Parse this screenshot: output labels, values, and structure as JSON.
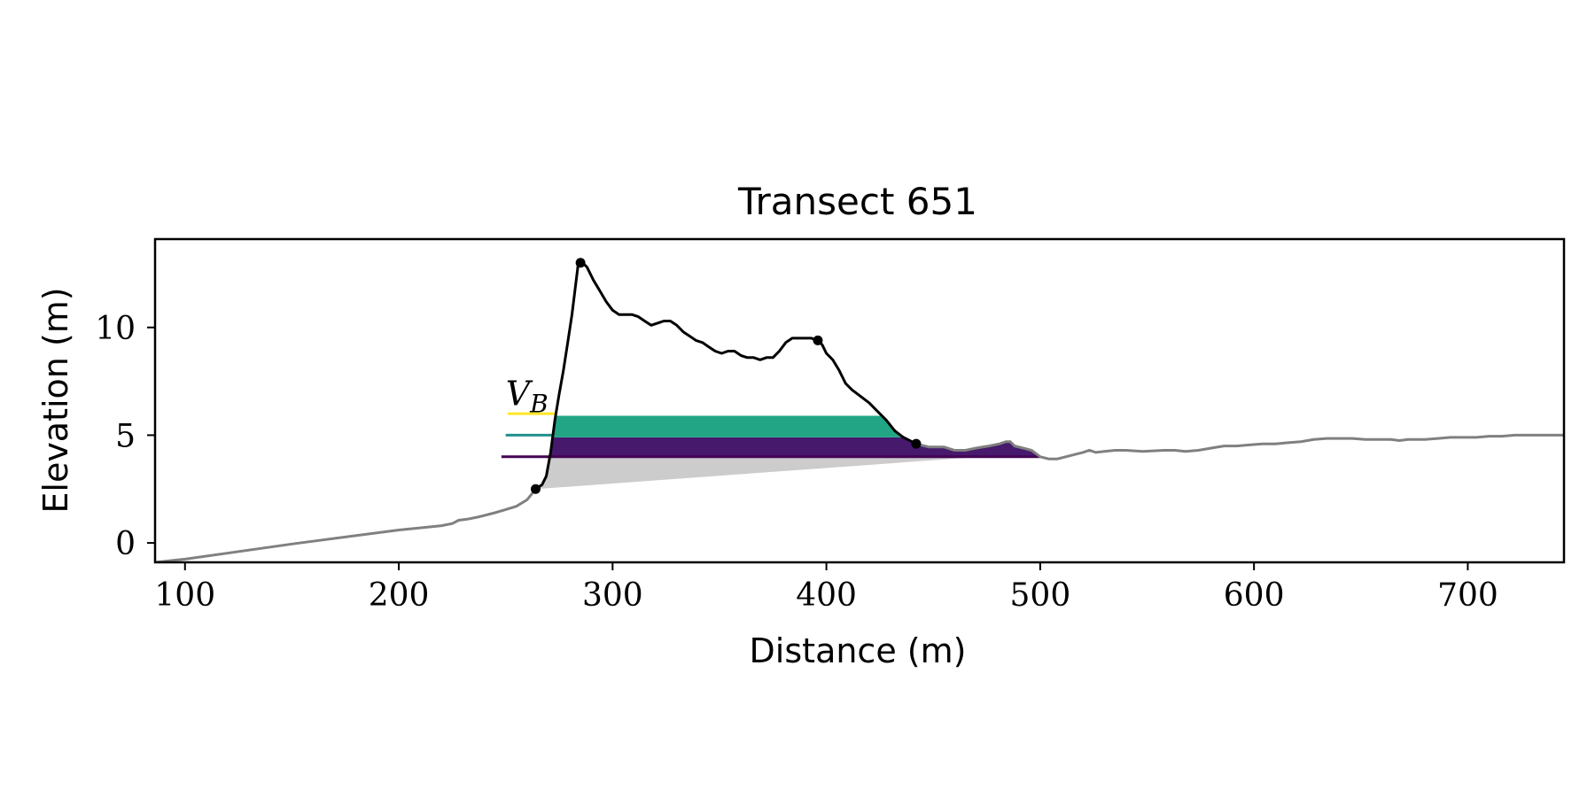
{
  "chart_data": {
    "type": "area",
    "title": "Transect 651",
    "xlabel": "Distance (m)",
    "ylabel": "Elevation (m)",
    "xlim": [
      86,
      745
    ],
    "ylim": [
      -0.9,
      14.1
    ],
    "x_ticks": [
      100,
      200,
      300,
      400,
      500,
      600,
      700
    ],
    "y_ticks": [
      0,
      5,
      10
    ],
    "grid": false,
    "annotation": "V_B",
    "colors": {
      "ground": "#808080",
      "dune_outline": "#000000",
      "base_shade": "#cccccc",
      "layer_top": "#fde725",
      "layer_mid": "#21a585",
      "layer_low": "#46196d",
      "level_high": "#fde725",
      "level_mid": "#21908d",
      "level_low": "#440154"
    },
    "levels": [
      {
        "id": "high",
        "elevation": 6.0,
        "x_start": 251
      },
      {
        "id": "mid",
        "elevation": 5.0,
        "x_start": 250
      },
      {
        "id": "low",
        "elevation": 4.0,
        "x_start": 248
      }
    ],
    "layer_bounds": {
      "low": 4.0,
      "mid": 4.9,
      "high": 5.9
    },
    "dune_profile": [
      [
        264,
        2.5
      ],
      [
        267,
        2.7
      ],
      [
        269,
        3.1
      ],
      [
        271,
        4.2
      ],
      [
        273,
        5.7
      ],
      [
        275,
        6.9
      ],
      [
        277,
        8.0
      ],
      [
        279,
        9.3
      ],
      [
        281,
        10.6
      ],
      [
        283,
        12.2
      ],
      [
        284,
        13.0
      ],
      [
        286,
        13.0
      ],
      [
        288,
        12.8
      ],
      [
        291,
        12.2
      ],
      [
        294,
        11.7
      ],
      [
        297,
        11.2
      ],
      [
        300,
        10.8
      ],
      [
        303,
        10.6
      ],
      [
        306,
        10.6
      ],
      [
        309,
        10.6
      ],
      [
        312,
        10.5
      ],
      [
        315,
        10.3
      ],
      [
        318,
        10.1
      ],
      [
        321,
        10.2
      ],
      [
        324,
        10.3
      ],
      [
        327,
        10.3
      ],
      [
        330,
        10.1
      ],
      [
        333,
        9.8
      ],
      [
        336,
        9.6
      ],
      [
        339,
        9.4
      ],
      [
        342,
        9.3
      ],
      [
        345,
        9.1
      ],
      [
        348,
        8.9
      ],
      [
        351,
        8.8
      ],
      [
        354,
        8.9
      ],
      [
        357,
        8.9
      ],
      [
        360,
        8.7
      ],
      [
        363,
        8.6
      ],
      [
        366,
        8.6
      ],
      [
        369,
        8.5
      ],
      [
        372,
        8.6
      ],
      [
        375,
        8.6
      ],
      [
        378,
        8.9
      ],
      [
        381,
        9.3
      ],
      [
        384,
        9.5
      ],
      [
        387,
        9.5
      ],
      [
        390,
        9.5
      ],
      [
        393,
        9.5
      ],
      [
        396,
        9.4
      ],
      [
        398,
        9.2
      ],
      [
        400,
        8.8
      ],
      [
        403,
        8.5
      ],
      [
        406,
        8.0
      ],
      [
        409,
        7.4
      ],
      [
        412,
        7.1
      ],
      [
        416,
        6.8
      ],
      [
        420,
        6.5
      ],
      [
        424,
        6.1
      ],
      [
        428,
        5.7
      ],
      [
        432,
        5.2
      ],
      [
        436,
        4.9
      ],
      [
        440,
        4.7
      ],
      [
        442,
        4.6
      ]
    ],
    "ground_left": [
      [
        86,
        -0.9
      ],
      [
        100,
        -0.75
      ],
      [
        150,
        -0.05
      ],
      [
        200,
        0.6
      ],
      [
        215,
        0.75
      ],
      [
        220,
        0.8
      ],
      [
        225,
        0.9
      ],
      [
        228,
        1.05
      ],
      [
        232,
        1.1
      ],
      [
        237,
        1.2
      ],
      [
        245,
        1.4
      ],
      [
        250,
        1.55
      ],
      [
        255,
        1.7
      ],
      [
        260,
        2.0
      ],
      [
        264,
        2.5
      ]
    ],
    "ground_right": [
      [
        442,
        4.6
      ],
      [
        448,
        4.45
      ],
      [
        455,
        4.45
      ],
      [
        460,
        4.3
      ],
      [
        465,
        4.3
      ],
      [
        470,
        4.4
      ],
      [
        476,
        4.5
      ],
      [
        481,
        4.6
      ],
      [
        484,
        4.7
      ],
      [
        486,
        4.7
      ],
      [
        488,
        4.5
      ],
      [
        492,
        4.4
      ],
      [
        496,
        4.3
      ],
      [
        500,
        4.0
      ],
      [
        504,
        3.9
      ],
      [
        508,
        3.9
      ],
      [
        512,
        4.0
      ],
      [
        516,
        4.1
      ],
      [
        520,
        4.2
      ],
      [
        523,
        4.3
      ],
      [
        526,
        4.2
      ],
      [
        530,
        4.25
      ],
      [
        535,
        4.3
      ],
      [
        540,
        4.3
      ],
      [
        548,
        4.25
      ],
      [
        558,
        4.3
      ],
      [
        563,
        4.3
      ],
      [
        568,
        4.25
      ],
      [
        574,
        4.3
      ],
      [
        580,
        4.4
      ],
      [
        586,
        4.5
      ],
      [
        592,
        4.5
      ],
      [
        598,
        4.55
      ],
      [
        604,
        4.6
      ],
      [
        610,
        4.6
      ],
      [
        616,
        4.65
      ],
      [
        622,
        4.7
      ],
      [
        628,
        4.8
      ],
      [
        634,
        4.85
      ],
      [
        640,
        4.85
      ],
      [
        646,
        4.85
      ],
      [
        652,
        4.8
      ],
      [
        658,
        4.8
      ],
      [
        664,
        4.8
      ],
      [
        668,
        4.75
      ],
      [
        672,
        4.8
      ],
      [
        676,
        4.8
      ],
      [
        680,
        4.8
      ],
      [
        686,
        4.85
      ],
      [
        692,
        4.9
      ],
      [
        698,
        4.9
      ],
      [
        704,
        4.9
      ],
      [
        710,
        4.95
      ],
      [
        716,
        4.95
      ],
      [
        722,
        5.0
      ],
      [
        728,
        5.0
      ],
      [
        734,
        5.0
      ],
      [
        740,
        5.0
      ],
      [
        745,
        5.0
      ]
    ],
    "base_line": [
      [
        264,
        2.5
      ],
      [
        500,
        4.2
      ]
    ],
    "key_points": [
      {
        "x": 264,
        "y": 2.5
      },
      {
        "x": 285,
        "y": 13.0
      },
      {
        "x": 396,
        "y": 9.4
      },
      {
        "x": 442,
        "y": 4.6
      }
    ]
  }
}
